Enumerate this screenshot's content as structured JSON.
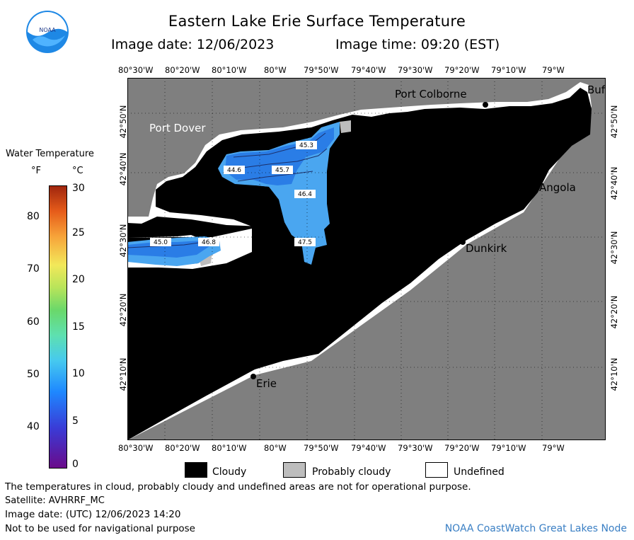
{
  "header": {
    "title": "Eastern Lake Erie Surface Temperature",
    "image_date": "Image date: 12/06/2023",
    "image_time": "Image time: 09:20 (EST)",
    "logo_text": "NOAA"
  },
  "axes": {
    "longitude_ticks": [
      "80°30'W",
      "80°20'W",
      "80°10'W",
      "80°W",
      "79°50'W",
      "79°40'W",
      "79°30'W",
      "79°20'W",
      "79°10'W",
      "79°W"
    ],
    "latitude_ticks": [
      "42°50'N",
      "42°40'N",
      "42°30'N",
      "42°20'N",
      "42°10'N"
    ]
  },
  "places": {
    "port_colborne": "Port Colborne",
    "port_dover": "Port Dover",
    "angola": "Angola",
    "dunkirk": "Dunkirk",
    "erie": "Erie",
    "buffalo": "Buf"
  },
  "isotherm_labels": {
    "a": "45.3",
    "b": "44.6",
    "c": "45.7",
    "d": "46.4",
    "e": "45.0",
    "f": "46.8",
    "g": "47.5"
  },
  "legend": {
    "title": "Water Temperature",
    "unit_f": "°F",
    "unit_c": "°C",
    "f_ticks": [
      "80",
      "70",
      "60",
      "50",
      "40"
    ],
    "c_ticks": [
      "30",
      "25",
      "20",
      "15",
      "10",
      "5",
      "0"
    ]
  },
  "key": {
    "cloudy": "Cloudy",
    "probably_cloudy": "Probably cloudy",
    "undefined": "Undefined",
    "colors": {
      "cloudy": "#000000",
      "probably_cloudy": "#bdbdbd",
      "undefined": "#ffffff"
    }
  },
  "footer": {
    "disclaimer": "The temperatures in cloud, probably cloudy and undefined areas are not for operational purpose.",
    "satellite": "Satellite: AVHRRF_MC",
    "utc_date": "Image date: (UTC) 12/06/2023  14:20",
    "nav_warning": "Not to be used for navigational purpose",
    "credit": "NOAA CoastWatch Great Lakes Node"
  },
  "colors": {
    "land": "#7f7f7f",
    "cloud": "#000000",
    "water_warm": "#4aa6f0",
    "water_cool": "#2a7de6"
  }
}
